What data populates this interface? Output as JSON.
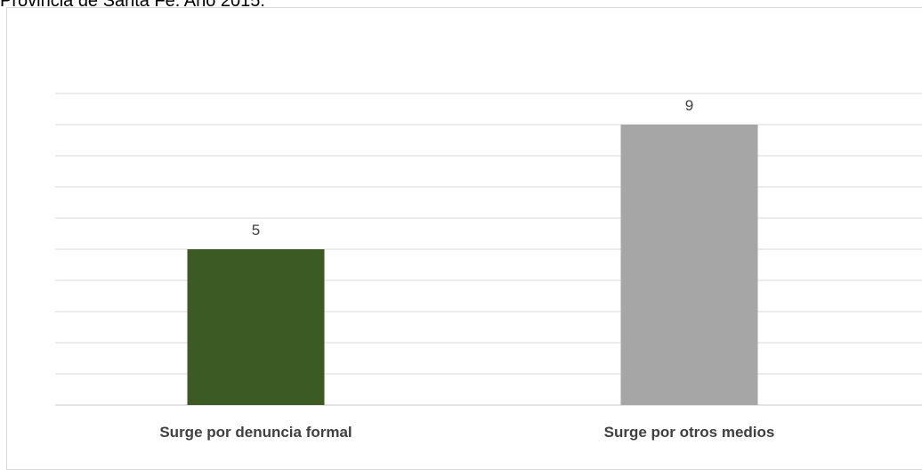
{
  "header": {
    "caption": "Provincia de Santa Fe. Año 2015."
  },
  "chart_data": {
    "type": "bar",
    "categories": [
      "Surge por denuncia formal",
      "Surge por otros medios"
    ],
    "values": [
      5,
      9
    ],
    "colors": [
      "#3b5a24",
      "#a6a6a6"
    ],
    "title": "",
    "xlabel": "",
    "ylabel": "",
    "ylim": [
      0,
      10
    ],
    "grid": true,
    "gridline_step": 1,
    "gridline_color": "#d9d9d9",
    "legend": "none"
  }
}
